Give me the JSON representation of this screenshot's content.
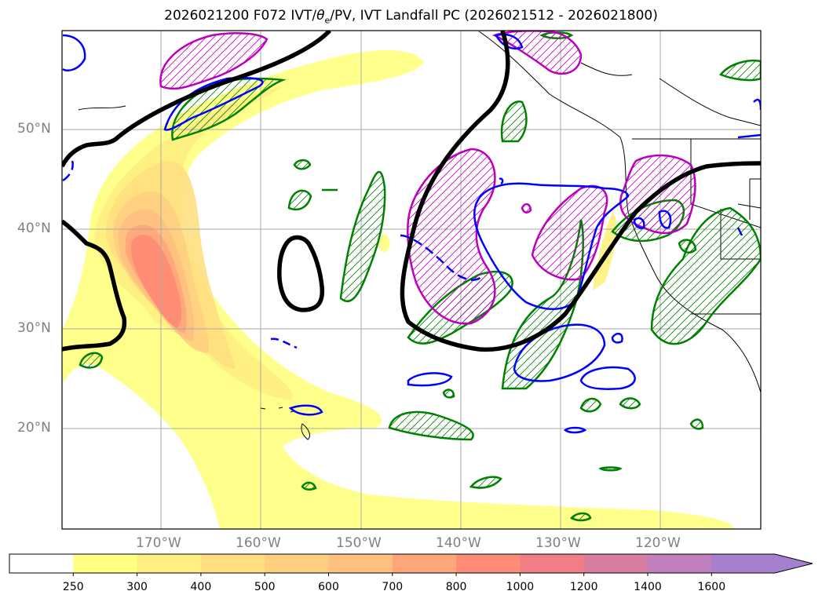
{
  "title": "2026021200 F072 IVT/θe/PV, IVT Landfall PC (2026021512 - 2026021800)",
  "title_parts": {
    "prefix": "2026021200 F072 IVT/",
    "theta": "θ",
    "sub": "e",
    "suffix": "/PV, IVT Landfall PC (2026021512 - 2026021800)"
  },
  "map": {
    "lat_labels": [
      "50°N",
      "40°N",
      "30°N",
      "20°N"
    ],
    "lon_labels": [
      "170°W",
      "160°W",
      "150°W",
      "140°W",
      "130°W",
      "120°W"
    ],
    "contour_colors": {
      "thick_contour": "#000000",
      "pv_contour": "#0000ff",
      "theta_e_green": "#008000",
      "theta_e_magenta": "#bb00bb"
    }
  },
  "colorbar": {
    "levels": [
      "250",
      "300",
      "400",
      "500",
      "600",
      "700",
      "800",
      "1000",
      "1200",
      "1400",
      "1600"
    ],
    "colors": [
      "#ffffff",
      "#ffff80",
      "#ffef80",
      "#ffdf80",
      "#ffcf80",
      "#ffbf80",
      "#ffa57a",
      "#ff8a75",
      "#f27e85",
      "#d67da0",
      "#bf7fbf",
      "#a77fcf"
    ]
  }
}
